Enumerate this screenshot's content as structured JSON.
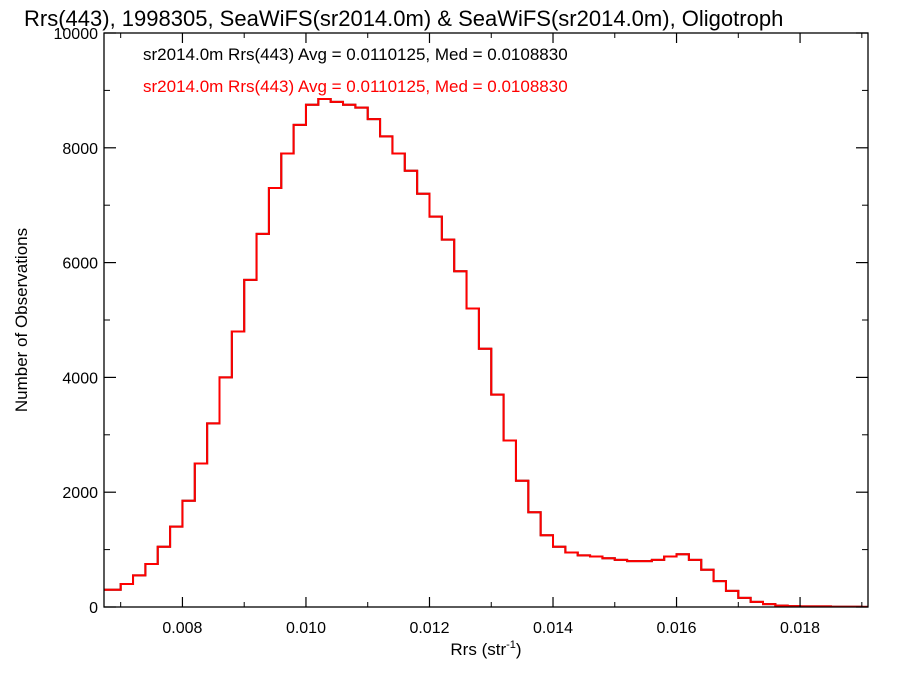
{
  "chart_data": {
    "type": "line",
    "step": true,
    "title": "Rrs(443), 1998305, SeaWiFS(sr2014.0m) & SeaWiFS(sr2014.0m), Oligotroph",
    "xlabel": "Rrs (str",
    "xlabel_sup": "-1",
    "xlabel_end": ")",
    "ylabel": "Number of Observations",
    "xlim": [
      0.00673,
      0.0191
    ],
    "ylim": [
      0,
      10000
    ],
    "grid": false,
    "x_ticks": [
      0.008,
      0.01,
      0.012,
      0.014,
      0.016,
      0.018
    ],
    "x_tick_labels": [
      "0.008",
      "0.010",
      "0.012",
      "0.014",
      "0.016",
      "0.018"
    ],
    "y_ticks": [
      0,
      2000,
      4000,
      6000,
      8000,
      10000
    ],
    "y_tick_labels": [
      "0",
      "2000",
      "4000",
      "6000",
      "8000",
      "10000"
    ],
    "colors": {
      "series_1": "#000000",
      "series_2": "#ff0000"
    },
    "annotations": [
      {
        "text": "sr2014.0m Rrs(443) Avg = 0.0110125, Med = 0.0108830",
        "color": "#000000"
      },
      {
        "text": "sr2014.0m Rrs(443) Avg = 0.0110125, Med = 0.0108830",
        "color": "#ff0000"
      }
    ],
    "series": [
      {
        "x": [
          0.00673,
          0.007,
          0.0072,
          0.0074,
          0.0076,
          0.0078,
          0.008,
          0.0082,
          0.0084,
          0.0086,
          0.0088,
          0.009,
          0.0092,
          0.0094,
          0.0096,
          0.0098,
          0.01,
          0.0102,
          0.0104,
          0.0106,
          0.0108,
          0.011,
          0.0112,
          0.0114,
          0.0116,
          0.0118,
          0.012,
          0.0122,
          0.0124,
          0.0126,
          0.0128,
          0.013,
          0.0132,
          0.0134,
          0.0136,
          0.0138,
          0.014,
          0.0142,
          0.0144,
          0.0146,
          0.0148,
          0.015,
          0.0152,
          0.0154,
          0.0156,
          0.0158,
          0.016,
          0.0162,
          0.0164,
          0.0166,
          0.0168,
          0.017,
          0.0172,
          0.0174,
          0.0176,
          0.0178,
          0.018,
          0.0185,
          0.019
        ],
        "y": [
          300,
          400,
          550,
          750,
          1050,
          1400,
          1850,
          2500,
          3200,
          4000,
          4800,
          5700,
          6500,
          7300,
          7900,
          8400,
          8750,
          8850,
          8800,
          8750,
          8700,
          8500,
          8200,
          7900,
          7600,
          7200,
          6800,
          6400,
          5850,
          5200,
          4500,
          3700,
          2900,
          2200,
          1650,
          1250,
          1050,
          950,
          900,
          880,
          850,
          820,
          800,
          800,
          820,
          880,
          920,
          820,
          650,
          450,
          280,
          160,
          90,
          50,
          25,
          15,
          10,
          5,
          3
        ]
      },
      {
        "x": [
          0.00673,
          0.007,
          0.0072,
          0.0074,
          0.0076,
          0.0078,
          0.008,
          0.0082,
          0.0084,
          0.0086,
          0.0088,
          0.009,
          0.0092,
          0.0094,
          0.0096,
          0.0098,
          0.01,
          0.0102,
          0.0104,
          0.0106,
          0.0108,
          0.011,
          0.0112,
          0.0114,
          0.0116,
          0.0118,
          0.012,
          0.0122,
          0.0124,
          0.0126,
          0.0128,
          0.013,
          0.0132,
          0.0134,
          0.0136,
          0.0138,
          0.014,
          0.0142,
          0.0144,
          0.0146,
          0.0148,
          0.015,
          0.0152,
          0.0154,
          0.0156,
          0.0158,
          0.016,
          0.0162,
          0.0164,
          0.0166,
          0.0168,
          0.017,
          0.0172,
          0.0174,
          0.0176,
          0.0178,
          0.018,
          0.0185,
          0.019
        ],
        "y": [
          300,
          400,
          550,
          750,
          1050,
          1400,
          1850,
          2500,
          3200,
          4000,
          4800,
          5700,
          6500,
          7300,
          7900,
          8400,
          8750,
          8850,
          8800,
          8750,
          8700,
          8500,
          8200,
          7900,
          7600,
          7200,
          6800,
          6400,
          5850,
          5200,
          4500,
          3700,
          2900,
          2200,
          1650,
          1250,
          1050,
          950,
          900,
          880,
          850,
          820,
          800,
          800,
          820,
          880,
          920,
          820,
          650,
          450,
          280,
          160,
          90,
          50,
          25,
          15,
          10,
          5,
          3
        ]
      }
    ]
  }
}
